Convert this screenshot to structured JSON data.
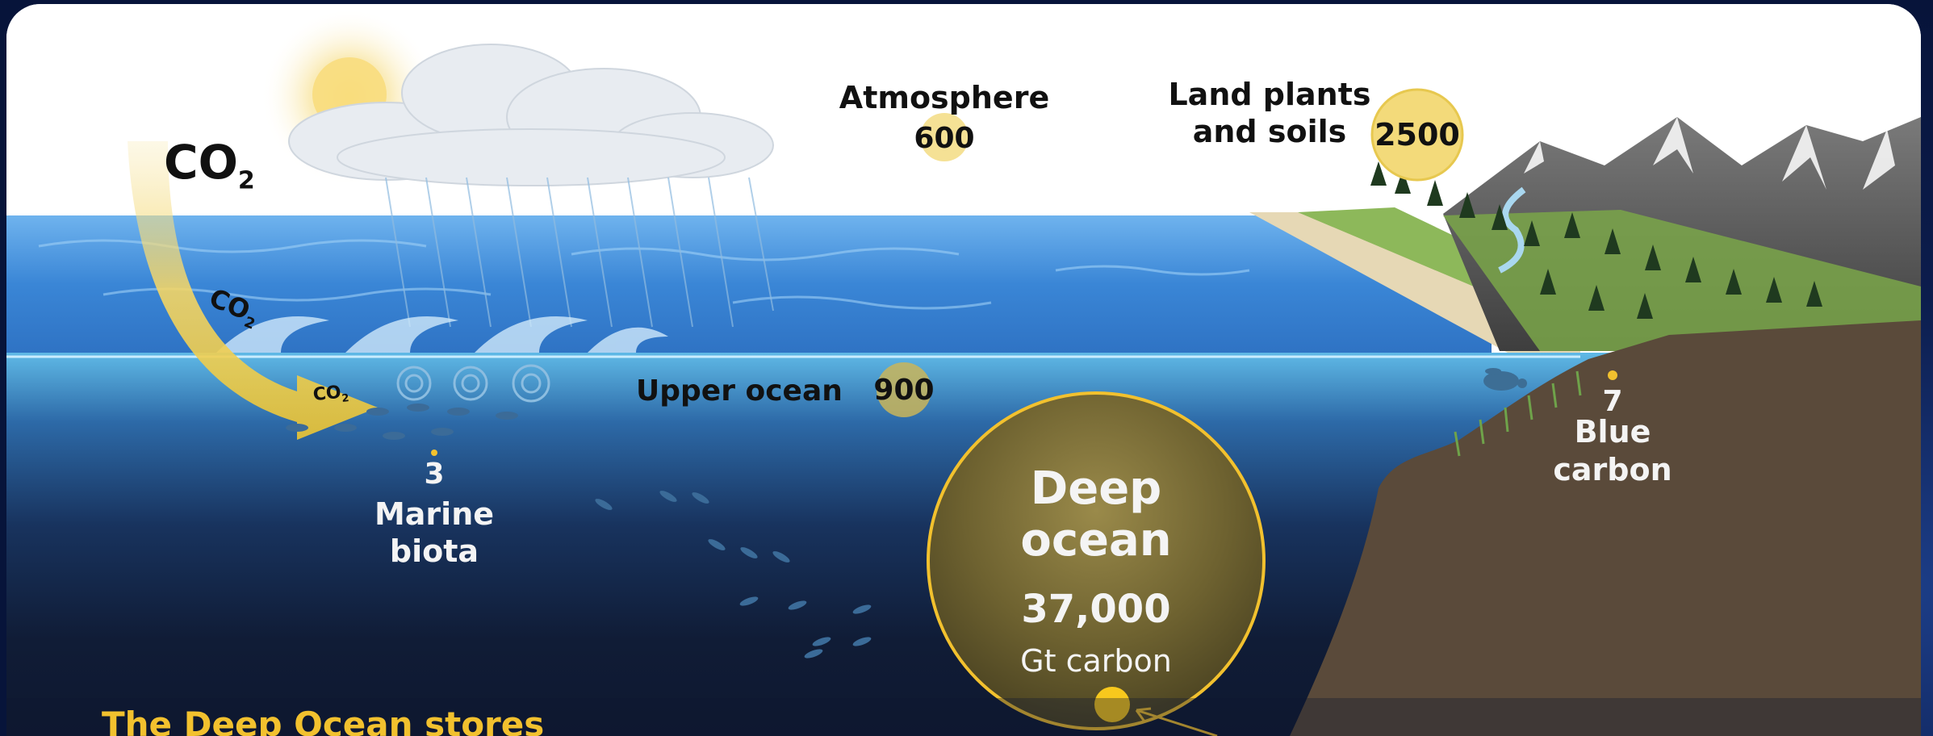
{
  "labels": {
    "co2_main": "CO",
    "co2_sub": "2",
    "co2_mid": "CO",
    "co2_mid_sub": "2",
    "co2_small": "CO",
    "co2_small_sub": "2",
    "atmosphere_name": "Atmosphere",
    "atmosphere_value": "600",
    "land_name_line1": "Land plants",
    "land_name_line2": "and soils",
    "land_value": "2500",
    "upper_ocean_name": "Upper ocean",
    "upper_ocean_value": "900",
    "marine_value": "3",
    "marine_line1": "Marine",
    "marine_line2": "biota",
    "blue_value": "7",
    "blue_line1": "Blue",
    "blue_line2": "carbon",
    "deep_line1": "Deep",
    "deep_line2": "ocean",
    "deep_value": "37,000",
    "deep_unit": "Gt carbon"
  },
  "headline": "The Deep Ocean stores",
  "colors": {
    "accent_yellow": "#f2c12e",
    "bubble_fill": "#f3da7a",
    "land_brown": "#5a4a3a",
    "deep_navy": "#0f1a33",
    "surface_blue": "#3b86d6"
  }
}
